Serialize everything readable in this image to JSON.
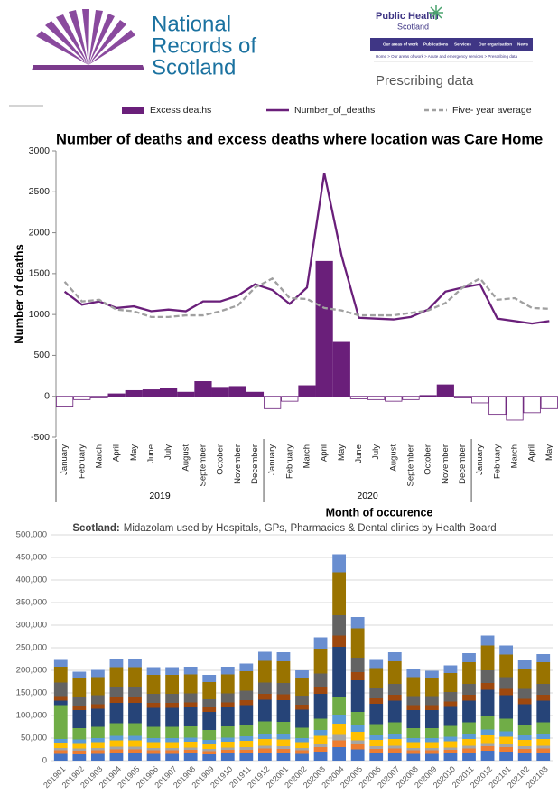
{
  "header": {
    "nrs_logo": [
      "National",
      "Records of",
      "Scotland"
    ],
    "phs_logo": [
      "Public Health",
      "Scotland"
    ],
    "nav": [
      "Our areas of work",
      "Publications",
      "Services",
      "Our organisation",
      "News"
    ],
    "breadcrumb": "Home > Our areas of work > Acute and emergency services > Prescribing data",
    "page_title": "Prescribing data"
  },
  "chart_data": [
    {
      "type": "combo",
      "title": "Number of deaths and excess deaths where location was Care Home",
      "categories": [
        "January",
        "February",
        "March",
        "April",
        "May",
        "June",
        "July",
        "August",
        "September",
        "October",
        "November",
        "December",
        "January",
        "February",
        "March",
        "April",
        "May",
        "June",
        "July",
        "August",
        "September",
        "October",
        "November",
        "December",
        "January",
        "February",
        "March",
        "April",
        "May"
      ],
      "groups": [
        "2019",
        "2020",
        null
      ],
      "xlabel": "Month of occurence",
      "ylabel": "Number of deaths",
      "ylim": [
        -500,
        3000
      ],
      "yticks": [
        -500,
        0,
        500,
        1000,
        1500,
        2000,
        2500,
        3000
      ],
      "series": [
        {
          "name": "Excess deaths",
          "kind": "bar",
          "color": "#6a1f7a",
          "values": [
            -120,
            -40,
            -20,
            30,
            70,
            80,
            100,
            50,
            180,
            110,
            120,
            50,
            -150,
            -60,
            130,
            1650,
            660,
            -30,
            -40,
            -60,
            -40,
            10,
            140,
            -20,
            -80,
            -220,
            -290,
            -200,
            -150
          ]
        },
        {
          "name": "Number_of_deaths",
          "kind": "line",
          "color": "#6a1f7a",
          "values": [
            1280,
            1120,
            1160,
            1080,
            1100,
            1040,
            1060,
            1040,
            1160,
            1160,
            1230,
            1370,
            1300,
            1130,
            1330,
            2730,
            1720,
            960,
            950,
            940,
            970,
            1060,
            1280,
            1330,
            1370,
            950,
            920,
            890,
            920
          ]
        },
        {
          "name": "Five- year average",
          "kind": "line",
          "dashed": true,
          "color": "#a0a0a0",
          "values": [
            1400,
            1160,
            1180,
            1060,
            1040,
            970,
            970,
            990,
            990,
            1040,
            1110,
            1330,
            1440,
            1200,
            1190,
            1080,
            1050,
            990,
            990,
            990,
            1020,
            1050,
            1140,
            1330,
            1440,
            1180,
            1200,
            1080,
            1070
          ]
        }
      ]
    },
    {
      "type": "stacked_bar",
      "title_bold": "Scotland:",
      "title": "Midazolam used by Hospitals, GPs, Pharmacies & Dental clinics by Health Board",
      "categories": [
        "201901",
        "201902",
        "201903",
        "201904",
        "201905",
        "201906",
        "201907",
        "201908",
        "201909",
        "201910",
        "201911",
        "201912",
        "202001",
        "202002",
        "202003",
        "202004",
        "202005",
        "202006",
        "202007",
        "202008",
        "202009",
        "202010",
        "202011",
        "202012",
        "202101",
        "202102",
        "202103"
      ],
      "ylim": [
        0,
        500000
      ],
      "yticks": [
        0,
        {
          "value": 50000,
          "label": "50,000"
        },
        {
          "value": 100000,
          "label": "100,000"
        },
        {
          "value": 150000,
          "label": "150,000"
        },
        {
          "value": 200000,
          "label": "200,000"
        },
        {
          "value": 250000,
          "label": "250,000"
        },
        {
          "value": 300000,
          "label": "300,000"
        },
        {
          "value": 350000,
          "label": "350,000"
        },
        {
          "value": 400000,
          "label": "400,000"
        },
        {
          "value": 450000,
          "label": "450,000"
        },
        {
          "value": 500000,
          "label": "500,000"
        }
      ],
      "grid": true,
      "series": [
        {
          "color": "#4472c4",
          "values": [
            15000,
            14000,
            15000,
            16000,
            16000,
            15000,
            15000,
            16000,
            14000,
            16000,
            16000,
            18000,
            17000,
            15000,
            20000,
            30000,
            25000,
            17000,
            18000,
            15000,
            15000,
            16000,
            18000,
            22000,
            20000,
            17000,
            18000
          ]
        },
        {
          "color": "#ed7d31",
          "values": [
            8000,
            8000,
            8000,
            9000,
            9000,
            8000,
            8000,
            8000,
            7000,
            8000,
            8000,
            9000,
            9000,
            8000,
            10000,
            15000,
            12000,
            9000,
            9000,
            8000,
            8000,
            8000,
            9000,
            10000,
            10000,
            9000,
            9000
          ]
        },
        {
          "color": "#a5a5a5",
          "values": [
            5000,
            5000,
            5000,
            6000,
            6000,
            5000,
            5000,
            5000,
            5000,
            5000,
            6000,
            6000,
            6000,
            5000,
            7000,
            12000,
            8000,
            6000,
            6000,
            5000,
            5000,
            5000,
            6000,
            7000,
            7000,
            6000,
            6000
          ]
        },
        {
          "color": "#ffc000",
          "values": [
            12000,
            12000,
            13000,
            14000,
            14000,
            13000,
            13000,
            13000,
            12000,
            13000,
            14000,
            15000,
            15000,
            13000,
            18000,
            25000,
            19000,
            14000,
            15000,
            13000,
            13000,
            14000,
            15000,
            17000,
            16000,
            14000,
            15000
          ]
        },
        {
          "color": "#5b9bd5",
          "values": [
            8000,
            8000,
            9000,
            10000,
            10000,
            9000,
            9000,
            9000,
            8000,
            9000,
            10000,
            11000,
            11000,
            9000,
            13000,
            20000,
            14000,
            10000,
            11000,
            9000,
            9000,
            10000,
            11000,
            13000,
            12000,
            10000,
            11000
          ]
        },
        {
          "color": "#70ad47",
          "values": [
            75000,
            25000,
            25000,
            28000,
            28000,
            25000,
            25000,
            25000,
            22000,
            25000,
            26000,
            28000,
            28000,
            23000,
            25000,
            40000,
            30000,
            25000,
            26000,
            22000,
            22000,
            24000,
            26000,
            30000,
            28000,
            24000,
            26000
          ]
        },
        {
          "color": "#264478",
          "values": [
            10000,
            40000,
            40000,
            45000,
            45000,
            42000,
            42000,
            42000,
            40000,
            42000,
            43000,
            48000,
            48000,
            40000,
            55000,
            110000,
            70000,
            45000,
            48000,
            40000,
            40000,
            42000,
            48000,
            58000,
            52000,
            45000,
            48000
          ]
        },
        {
          "color": "#9e480e",
          "values": [
            10000,
            10000,
            10000,
            12000,
            12000,
            11000,
            11000,
            11000,
            10000,
            11000,
            11000,
            13000,
            13000,
            11000,
            15000,
            25000,
            18000,
            12000,
            13000,
            11000,
            11000,
            12000,
            13000,
            15000,
            14000,
            12000,
            13000
          ]
        },
        {
          "color": "#636363",
          "values": [
            30000,
            20000,
            20000,
            22000,
            22000,
            20000,
            20000,
            20000,
            18000,
            20000,
            21000,
            25000,
            25000,
            20000,
            30000,
            45000,
            32000,
            22000,
            24000,
            20000,
            20000,
            21000,
            24000,
            28000,
            26000,
            22000,
            24000
          ]
        },
        {
          "color": "#997300",
          "values": [
            35000,
            40000,
            40000,
            45000,
            45000,
            42000,
            42000,
            42000,
            38000,
            42000,
            43000,
            48000,
            48000,
            40000,
            55000,
            95000,
            65000,
            45000,
            50000,
            42000,
            40000,
            42000,
            48000,
            55000,
            50000,
            45000,
            48000
          ]
        },
        {
          "color": "#698ed0",
          "values": [
            15000,
            15000,
            16000,
            18000,
            18000,
            17000,
            17000,
            17000,
            16000,
            17000,
            17000,
            20000,
            20000,
            16000,
            25000,
            40000,
            25000,
            18000,
            20000,
            17000,
            16000,
            17000,
            20000,
            22000,
            20000,
            18000,
            18000
          ]
        }
      ]
    }
  ]
}
